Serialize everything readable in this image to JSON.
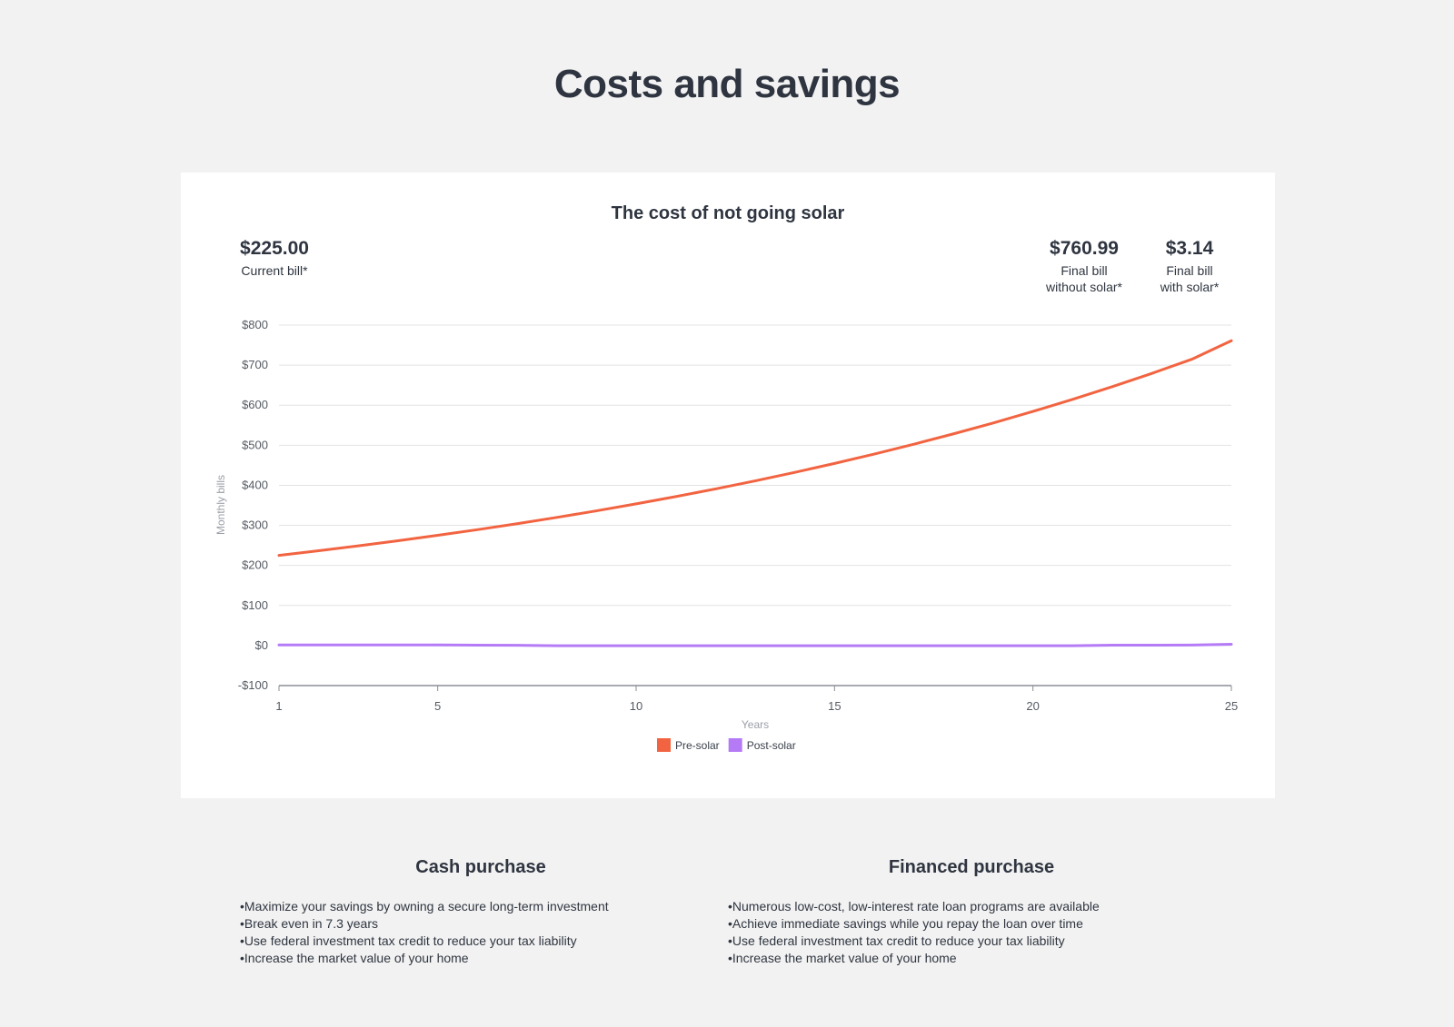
{
  "page": {
    "title": "Costs and savings"
  },
  "stats": {
    "current": {
      "value": "$225.00",
      "label": "Current bill*"
    },
    "without_solar": {
      "value": "$760.99",
      "label_line1": "Final bill",
      "label_line2": "without solar*"
    },
    "with_solar": {
      "value": "$3.14",
      "label_line1": "Final bill",
      "label_line2": "with solar*"
    }
  },
  "chart_data": {
    "type": "line",
    "title": "The cost of not going solar",
    "xlabel": "Years",
    "ylabel": "Monthly bills",
    "xlim": [
      1,
      25
    ],
    "ylim": [
      -100,
      800
    ],
    "x_ticks": [
      1,
      5,
      10,
      15,
      20,
      25
    ],
    "y_ticks": [
      -100,
      0,
      100,
      200,
      300,
      400,
      500,
      600,
      700,
      800
    ],
    "y_tick_labels": [
      "-$100",
      "$0",
      "$100",
      "$200",
      "$300",
      "$400",
      "$500",
      "$600",
      "$700",
      "$800"
    ],
    "grid": true,
    "legend_position": "bottom-center",
    "x": [
      1,
      2,
      3,
      4,
      5,
      6,
      7,
      8,
      9,
      10,
      11,
      12,
      13,
      14,
      15,
      16,
      17,
      18,
      19,
      20,
      21,
      22,
      23,
      24,
      25
    ],
    "series": [
      {
        "name": "Pre-solar",
        "color": "#f26441",
        "values": [
          225,
          236.6,
          248.8,
          261.6,
          275.1,
          289.2,
          304.1,
          319.8,
          336.3,
          353.6,
          371.8,
          391.0,
          411.1,
          432.3,
          454.6,
          478.0,
          502.6,
          528.5,
          555.7,
          584.4,
          614.5,
          646.2,
          679.5,
          714.5,
          760.99
        ]
      },
      {
        "name": "Post-solar",
        "color": "#b57bf7",
        "values": [
          1.5,
          1.5,
          1.5,
          1.5,
          1.5,
          1.0,
          0.5,
          -0.5,
          -0.5,
          -0.5,
          -0.5,
          -0.5,
          -0.5,
          -0.5,
          -0.5,
          -0.5,
          -0.5,
          -0.5,
          -0.5,
          -0.5,
          -0.5,
          0.8,
          1.0,
          1.2,
          3.14
        ]
      }
    ]
  },
  "cash": {
    "title": "Cash purchase",
    "bullets": [
      "Maximize your savings by owning a secure long-term investment",
      "Break even in 7.3 years",
      "Use federal investment tax credit to reduce your tax liability",
      "Increase the market value of your home"
    ]
  },
  "financed": {
    "title": "Financed purchase",
    "bullets": [
      "Numerous low-cost, low-interest rate loan programs are available",
      "Achieve immediate savings while you repay the loan over time",
      "Use federal investment tax credit to reduce your tax liability",
      "Increase the market value of your home"
    ]
  }
}
